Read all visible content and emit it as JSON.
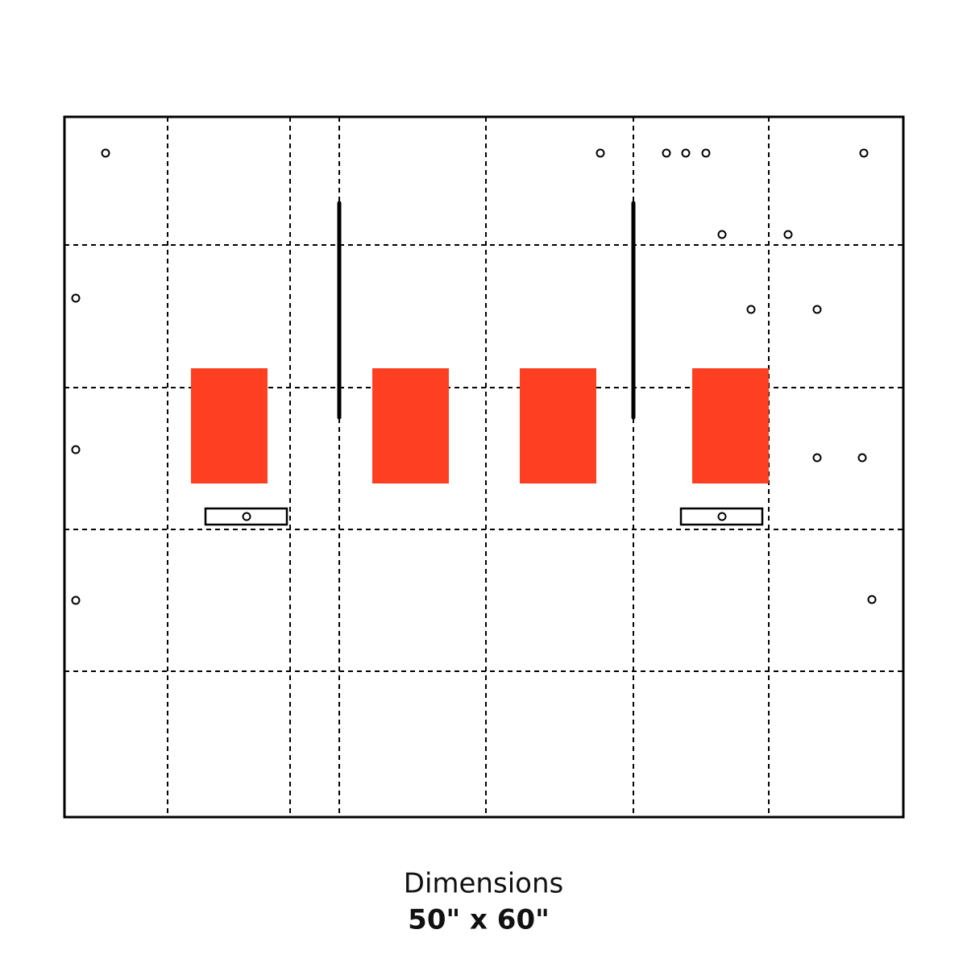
{
  "caption": {
    "title": "Dimensions",
    "size": "50\" x 60\""
  }
}
